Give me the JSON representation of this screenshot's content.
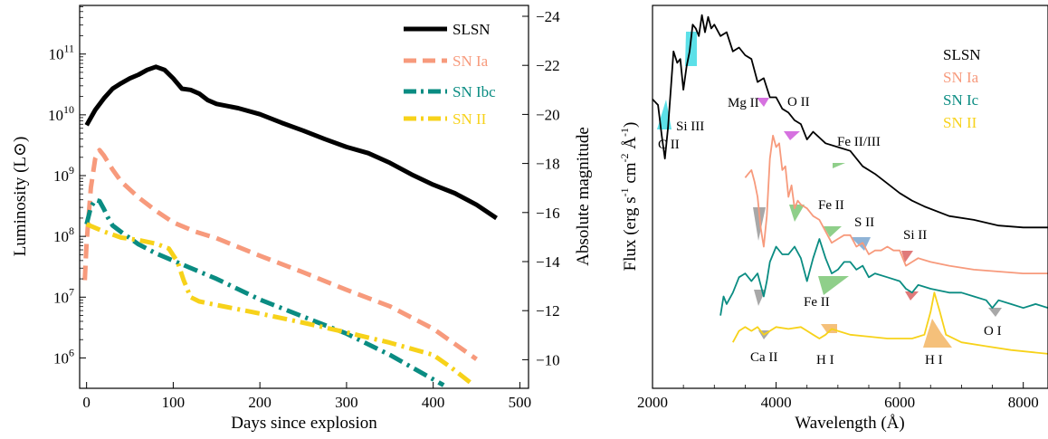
{
  "chart_data": [
    {
      "type": "line",
      "xlabel": "Days since explosion",
      "ylabel": "Luminosity (L⊙)",
      "ylabel_right": "Absolute magnitude",
      "xlim": [
        -8,
        510
      ],
      "ylim_log10": [
        5.5,
        11.8
      ],
      "y_scale": "log",
      "x_ticks": [
        0,
        100,
        200,
        300,
        400,
        500
      ],
      "y_ticks": [
        {
          "exp": 6,
          "base": "10",
          "sup": "6"
        },
        {
          "exp": 7,
          "base": "10",
          "sup": "7"
        },
        {
          "exp": 8,
          "base": "10",
          "sup": "8"
        },
        {
          "exp": 9,
          "base": "10",
          "sup": "9"
        },
        {
          "exp": 10,
          "base": "10",
          "sup": "10"
        },
        {
          "exp": 11,
          "base": "10",
          "sup": "11"
        }
      ],
      "right_ticks": [
        "-24",
        "-22",
        "-20",
        "-18",
        "-16",
        "-14",
        "-12",
        "-10"
      ],
      "legend_position": "top-right",
      "series": [
        {
          "name": "SLSN",
          "color": "#000000",
          "style": "solid",
          "x": [
            0,
            10,
            20,
            30,
            40,
            50,
            60,
            70,
            80,
            90,
            100,
            110,
            120,
            130,
            140,
            150,
            175,
            200,
            225,
            250,
            275,
            300,
            325,
            350,
            375,
            400,
            425,
            450,
            473
          ],
          "log10_L": [
            9.83,
            10.08,
            10.27,
            10.43,
            10.52,
            10.6,
            10.66,
            10.74,
            10.79,
            10.74,
            10.6,
            10.43,
            10.41,
            10.35,
            10.24,
            10.18,
            10.11,
            10.01,
            9.87,
            9.74,
            9.6,
            9.47,
            9.37,
            9.21,
            9.02,
            8.85,
            8.71,
            8.52,
            8.3
          ]
        },
        {
          "name": "SN Ia",
          "color": "#F79A7C",
          "style": "dashed",
          "x": [
            -2,
            0,
            5,
            10,
            15,
            20,
            30,
            40,
            60,
            80,
            100,
            125,
            150,
            200,
            250,
            300,
            350,
            400,
            450
          ],
          "log10_L": [
            7.28,
            7.9,
            8.8,
            9.28,
            9.42,
            9.33,
            9.1,
            8.9,
            8.64,
            8.42,
            8.23,
            8.08,
            7.97,
            7.68,
            7.41,
            7.12,
            6.85,
            6.48,
            5.98
          ]
        },
        {
          "name": "SN Ibc",
          "color": "#0A8C82",
          "style": "dashdot",
          "x": [
            0,
            5,
            10,
            15,
            20,
            25,
            30,
            40,
            60,
            80,
            100,
            150,
            200,
            250,
            300,
            350,
            412
          ],
          "log10_L": [
            8.2,
            8.48,
            8.6,
            8.58,
            8.45,
            8.3,
            8.18,
            8.07,
            7.87,
            7.72,
            7.6,
            7.3,
            6.96,
            6.68,
            6.4,
            6.05,
            5.55
          ]
        },
        {
          "name": "SN II",
          "color": "#F7D21A",
          "style": "dashdot",
          "x": [
            0,
            20,
            40,
            60,
            80,
            95,
            105,
            112,
            120,
            130,
            150,
            200,
            250,
            300,
            350,
            400,
            420,
            445
          ],
          "log10_L": [
            8.2,
            8.08,
            7.98,
            7.94,
            7.88,
            7.8,
            7.58,
            7.28,
            7.0,
            6.93,
            6.87,
            6.73,
            6.58,
            6.42,
            6.25,
            6.05,
            5.85,
            5.57
          ]
        }
      ]
    },
    {
      "type": "line",
      "xlabel": "Wavelength (Å)",
      "ylabel_parts": {
        "main": "Flux (erg s",
        "e1": "-1",
        "mid": " cm",
        "e2": "-2",
        "unit": " Å",
        "e3": "-1",
        "end": ")"
      },
      "xlim": [
        2000,
        8400
      ],
      "x_ticks": [
        2000,
        4000,
        6000,
        8000
      ],
      "y_ticks": "none",
      "legend_position": "top-right",
      "series": [
        {
          "name": "SLSN",
          "color": "#000000",
          "start": 2000,
          "end": 8400,
          "points": [
            [
              2000,
              0.755
            ],
            [
              2090,
              0.74
            ],
            [
              2150,
              0.66
            ],
            [
              2200,
              0.6
            ],
            [
              2250,
              0.68
            ],
            [
              2300,
              0.79
            ],
            [
              2340,
              0.88
            ],
            [
              2400,
              0.85
            ],
            [
              2450,
              0.86
            ],
            [
              2500,
              0.78
            ],
            [
              2550,
              0.84
            ],
            [
              2600,
              0.88
            ],
            [
              2650,
              0.95
            ],
            [
              2700,
              0.94
            ],
            [
              2750,
              0.92
            ],
            [
              2800,
              0.975
            ],
            [
              2850,
              0.93
            ],
            [
              2900,
              0.97
            ],
            [
              2950,
              0.94
            ],
            [
              3000,
              0.95
            ],
            [
              3100,
              0.92
            ],
            [
              3200,
              0.93
            ],
            [
              3300,
              0.88
            ],
            [
              3400,
              0.89
            ],
            [
              3500,
              0.87
            ],
            [
              3600,
              0.86
            ],
            [
              3700,
              0.8
            ],
            [
              3800,
              0.81
            ],
            [
              3900,
              0.76
            ],
            [
              4000,
              0.76
            ],
            [
              4100,
              0.73
            ],
            [
              4200,
              0.72
            ],
            [
              4300,
              0.7
            ],
            [
              4400,
              0.69
            ],
            [
              4500,
              0.65
            ],
            [
              4600,
              0.67
            ],
            [
              4800,
              0.64
            ],
            [
              5000,
              0.63
            ],
            [
              5200,
              0.62
            ],
            [
              5400,
              0.58
            ],
            [
              5600,
              0.56
            ],
            [
              5800,
              0.535
            ],
            [
              6000,
              0.51
            ],
            [
              6200,
              0.49
            ],
            [
              6400,
              0.475
            ],
            [
              6800,
              0.45
            ],
            [
              7200,
              0.44
            ],
            [
              7600,
              0.425
            ],
            [
              8000,
              0.42
            ],
            [
              8400,
              0.42
            ]
          ]
        },
        {
          "name": "SN Ia",
          "color": "#F79A7C",
          "start": 3500,
          "end": 8400,
          "points": [
            [
              3500,
              0.55
            ],
            [
              3550,
              0.56
            ],
            [
              3600,
              0.57
            ],
            [
              3650,
              0.54
            ],
            [
              3700,
              0.5
            ],
            [
              3750,
              0.42
            ],
            [
              3800,
              0.37
            ],
            [
              3850,
              0.45
            ],
            [
              3900,
              0.6
            ],
            [
              3950,
              0.66
            ],
            [
              4000,
              0.63
            ],
            [
              4050,
              0.64
            ],
            [
              4100,
              0.57
            ],
            [
              4150,
              0.58
            ],
            [
              4200,
              0.5
            ],
            [
              4250,
              0.53
            ],
            [
              4300,
              0.47
            ],
            [
              4350,
              0.49
            ],
            [
              4400,
              0.48
            ],
            [
              4500,
              0.47
            ],
            [
              4600,
              0.45
            ],
            [
              4700,
              0.44
            ],
            [
              4800,
              0.41
            ],
            [
              4900,
              0.38
            ],
            [
              5000,
              0.39
            ],
            [
              5100,
              0.4
            ],
            [
              5200,
              0.4
            ],
            [
              5300,
              0.37
            ],
            [
              5400,
              0.38
            ],
            [
              5500,
              0.35
            ],
            [
              5600,
              0.36
            ],
            [
              5700,
              0.36
            ],
            [
              5800,
              0.37
            ],
            [
              5900,
              0.36
            ],
            [
              6000,
              0.36
            ],
            [
              6100,
              0.32
            ],
            [
              6200,
              0.33
            ],
            [
              6300,
              0.34
            ],
            [
              6500,
              0.33
            ],
            [
              6800,
              0.32
            ],
            [
              7200,
              0.31
            ],
            [
              7600,
              0.305
            ],
            [
              8000,
              0.3
            ],
            [
              8400,
              0.3
            ]
          ]
        },
        {
          "name": "SN Ic",
          "color": "#0A8C82",
          "start": 3100,
          "end": 8400,
          "points": [
            [
              3100,
              0.19
            ],
            [
              3150,
              0.24
            ],
            [
              3200,
              0.22
            ],
            [
              3300,
              0.25
            ],
            [
              3400,
              0.29
            ],
            [
              3500,
              0.3
            ],
            [
              3600,
              0.28
            ],
            [
              3700,
              0.3
            ],
            [
              3750,
              0.27
            ],
            [
              3800,
              0.24
            ],
            [
              3850,
              0.28
            ],
            [
              3900,
              0.33
            ],
            [
              4000,
              0.37
            ],
            [
              4100,
              0.35
            ],
            [
              4200,
              0.35
            ],
            [
              4300,
              0.37
            ],
            [
              4400,
              0.34
            ],
            [
              4500,
              0.28
            ],
            [
              4600,
              0.34
            ],
            [
              4700,
              0.39
            ],
            [
              4800,
              0.34
            ],
            [
              4900,
              0.3
            ],
            [
              5000,
              0.31
            ],
            [
              5100,
              0.33
            ],
            [
              5200,
              0.33
            ],
            [
              5300,
              0.31
            ],
            [
              5400,
              0.32
            ],
            [
              5500,
              0.29
            ],
            [
              5600,
              0.3
            ],
            [
              5800,
              0.29
            ],
            [
              6000,
              0.28
            ],
            [
              6100,
              0.26
            ],
            [
              6200,
              0.25
            ],
            [
              6300,
              0.27
            ],
            [
              6500,
              0.26
            ],
            [
              6800,
              0.25
            ],
            [
              7000,
              0.25
            ],
            [
              7200,
              0.24
            ],
            [
              7400,
              0.23
            ],
            [
              7500,
              0.21
            ],
            [
              7600,
              0.23
            ],
            [
              7800,
              0.22
            ],
            [
              8000,
              0.21
            ],
            [
              8200,
              0.22
            ],
            [
              8400,
              0.21
            ]
          ]
        },
        {
          "name": "SN II",
          "color": "#F7D21A",
          "start": 3300,
          "end": 8400,
          "points": [
            [
              3300,
              0.12
            ],
            [
              3400,
              0.15
            ],
            [
              3500,
              0.16
            ],
            [
              3600,
              0.15
            ],
            [
              3700,
              0.16
            ],
            [
              3800,
              0.14
            ],
            [
              3900,
              0.15
            ],
            [
              4000,
              0.16
            ],
            [
              4200,
              0.155
            ],
            [
              4400,
              0.16
            ],
            [
              4600,
              0.14
            ],
            [
              4700,
              0.13
            ],
            [
              4800,
              0.14
            ],
            [
              4900,
              0.155
            ],
            [
              5000,
              0.15
            ],
            [
              5200,
              0.14
            ],
            [
              5500,
              0.135
            ],
            [
              5800,
              0.13
            ],
            [
              6200,
              0.13
            ],
            [
              6400,
              0.14
            ],
            [
              6500,
              0.2
            ],
            [
              6560,
              0.25
            ],
            [
              6650,
              0.2
            ],
            [
              6750,
              0.14
            ],
            [
              7000,
              0.12
            ],
            [
              7400,
              0.11
            ],
            [
              7800,
              0.1
            ],
            [
              8400,
              0.09
            ]
          ]
        }
      ],
      "annotations": [
        "C II",
        "Si III",
        "Mg II",
        "O II",
        "Fe II/III",
        "Fe II",
        "S II",
        "Si II",
        "Fe II",
        "O I",
        "Ca II",
        "H I",
        "H I"
      ],
      "band_colors": [
        "#5CE0E8",
        "#D672E0",
        "#8FCF8A",
        "#A8A8A8",
        "#8FB3D6",
        "#E07A7A",
        "#F5C07A"
      ]
    }
  ]
}
